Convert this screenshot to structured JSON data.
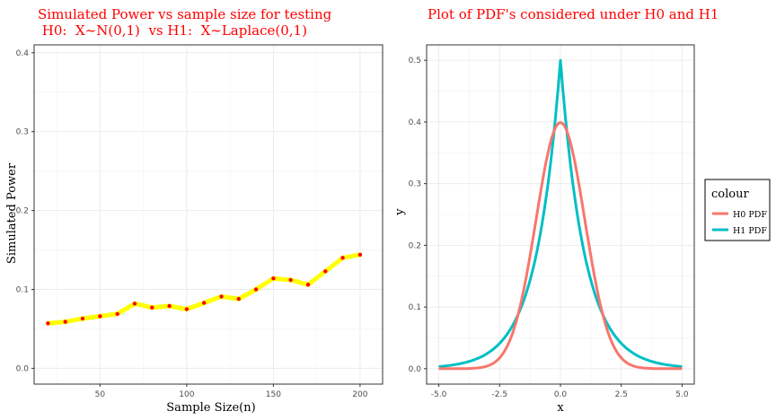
{
  "chart_data": [
    {
      "type": "line",
      "title_lines": [
        "Simulated Power vs sample size for testing",
        " H0:  X~N(0,1)  vs H1:  X~Laplace(0,1)"
      ],
      "xlabel": "Sample Size(n)",
      "ylabel": "Simulated Power",
      "xlim": [
        12,
        213
      ],
      "ylim": [
        -0.02,
        0.41
      ],
      "x_ticks": [
        50,
        100,
        150,
        200
      ],
      "y_ticks": [
        0.0,
        0.1,
        0.2,
        0.3,
        0.4
      ],
      "x_tick_labels": [
        "50",
        "100",
        "150",
        "200"
      ],
      "y_tick_labels": [
        "0.0",
        "0.1",
        "0.2",
        "0.3",
        "0.4"
      ],
      "grid": true,
      "line_color": "#ffff00",
      "point_color": "#ff0000",
      "x": [
        20,
        30,
        40,
        50,
        60,
        70,
        80,
        90,
        100,
        110,
        120,
        130,
        140,
        150,
        160,
        170,
        180,
        190,
        200
      ],
      "y": [
        0.057,
        0.059,
        0.063,
        0.066,
        0.069,
        0.082,
        0.077,
        0.079,
        0.075,
        0.083,
        0.091,
        0.088,
        0.1,
        0.114,
        0.112,
        0.106,
        0.123,
        0.14,
        0.144
      ]
    },
    {
      "type": "line",
      "title": "Plot of PDF's considered under H0 and H1",
      "xlabel": "x",
      "ylabel": "y",
      "xlim": [
        -5.5,
        5.5
      ],
      "ylim": [
        -0.025,
        0.525
      ],
      "x_ticks": [
        -5,
        -2.5,
        0,
        2.5,
        5
      ],
      "y_ticks": [
        0.0,
        0.1,
        0.2,
        0.3,
        0.4,
        0.5
      ],
      "x_tick_labels": [
        "-5.0",
        "-2.5",
        "0.0",
        "2.5",
        "5.0"
      ],
      "y_tick_labels": [
        "0.0",
        "0.1",
        "0.2",
        "0.3",
        "0.4",
        "0.5"
      ],
      "grid": true,
      "legend": {
        "title": "colour",
        "position": "right"
      },
      "series": [
        {
          "name": "H0 PDF",
          "color": "#f8766d",
          "x": [
            -5,
            -4.5,
            -4,
            -3.5,
            -3,
            -2.5,
            -2,
            -1.5,
            -1,
            -0.5,
            0,
            0.5,
            1,
            1.5,
            2,
            2.5,
            3,
            3.5,
            4,
            4.5,
            5
          ],
          "y": [
            0.0,
            0.0,
            0.0001,
            0.0009,
            0.0044,
            0.0175,
            0.054,
            0.1295,
            0.242,
            0.3521,
            0.3989,
            0.3521,
            0.242,
            0.1295,
            0.054,
            0.0175,
            0.0044,
            0.0009,
            0.0001,
            0.0,
            0.0
          ]
        },
        {
          "name": "H1 PDF",
          "color": "#00bfc4",
          "x": [
            -5,
            -4.5,
            -4,
            -3.5,
            -3,
            -2.5,
            -2,
            -1.5,
            -1,
            -0.5,
            0,
            0.5,
            1,
            1.5,
            2,
            2.5,
            3,
            3.5,
            4,
            4.5,
            5
          ],
          "y": [
            0.0034,
            0.0056,
            0.0092,
            0.0151,
            0.0249,
            0.041,
            0.0677,
            0.1116,
            0.1839,
            0.3033,
            0.5,
            0.3033,
            0.1839,
            0.1116,
            0.0677,
            0.041,
            0.0249,
            0.0151,
            0.0092,
            0.0056,
            0.0034
          ]
        }
      ]
    }
  ]
}
